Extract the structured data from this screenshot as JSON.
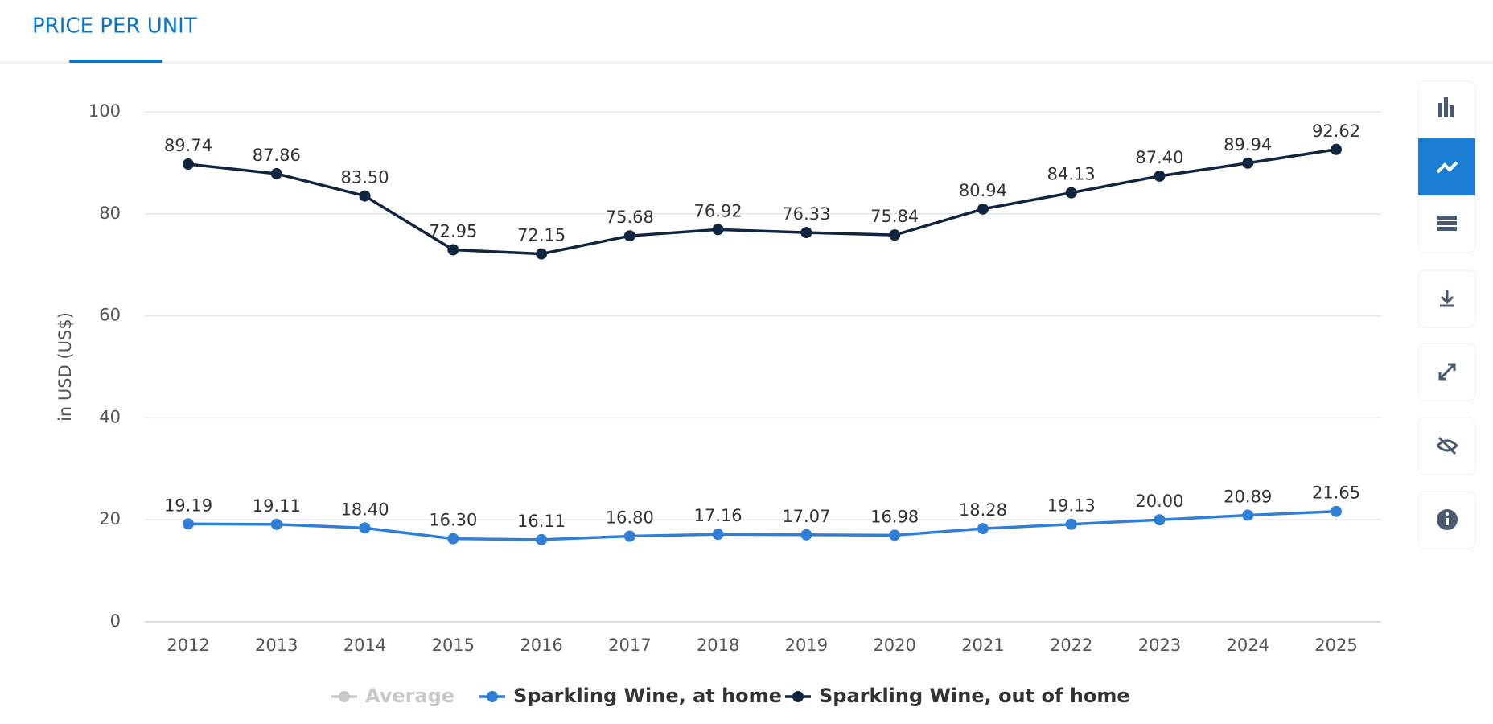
{
  "header": {
    "title": "PRICE PER UNIT"
  },
  "chart_data": {
    "type": "line",
    "y_label": "in USD (US$)",
    "categories": [
      "2012",
      "2013",
      "2014",
      "2015",
      "2016",
      "2017",
      "2018",
      "2019",
      "2020",
      "2021",
      "2022",
      "2023",
      "2024",
      "2025"
    ],
    "ylim": [
      0,
      100
    ],
    "yticks": [
      0,
      20,
      40,
      60,
      80,
      100
    ],
    "grid": true,
    "legend_inactive": {
      "name": "Average",
      "color": "#c8c8c8"
    },
    "series": [
      {
        "name": "Sparkling Wine, at home",
        "color": "#2f7ed8",
        "values": [
          19.19,
          19.11,
          18.4,
          16.3,
          16.11,
          16.8,
          17.16,
          17.07,
          16.98,
          18.28,
          19.13,
          20,
          20.89,
          21.65
        ],
        "value_labels": [
          "19.19",
          "19.11",
          "18.40",
          "16.30",
          "16.11",
          "16.80",
          "17.16",
          "17.07",
          "16.98",
          "18.28",
          "19.13",
          "20.00",
          "20.89",
          "21.65"
        ]
      },
      {
        "name": "Sparkling Wine, out of home",
        "color": "#0f2540",
        "values": [
          89.74,
          87.86,
          83.5,
          72.95,
          72.15,
          75.68,
          76.92,
          76.33,
          75.84,
          80.94,
          84.13,
          87.4,
          89.94,
          92.62
        ],
        "value_labels": [
          "89.74",
          "87.86",
          "83.50",
          "72.95",
          "72.15",
          "75.68",
          "76.92",
          "76.33",
          "75.84",
          "80.94",
          "84.13",
          "87.40",
          "89.94",
          "92.62"
        ]
      }
    ]
  }
}
